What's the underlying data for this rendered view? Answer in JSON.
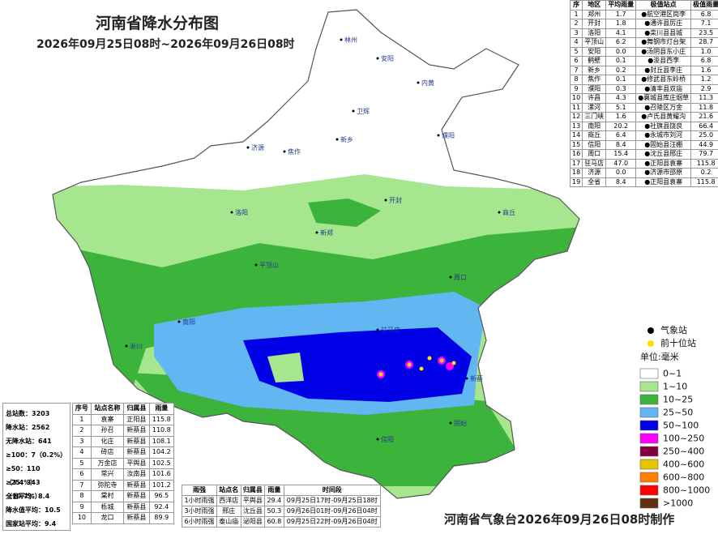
{
  "header": {
    "title": "河南省降水分布图",
    "subtitle": "2026年09月25日08时~2026年09月26日08时"
  },
  "city_table": {
    "columns": [
      "序",
      "地区",
      "平均雨量",
      "极值站点",
      "极值雨量"
    ],
    "rows": [
      [
        "1",
        "郑州",
        "1.7",
        "●航空港区岗李",
        "6.8"
      ],
      [
        "2",
        "开封",
        "1.8",
        "●通许县厉庄",
        "7.1"
      ],
      [
        "3",
        "洛阳",
        "4.1",
        "●栾川县县城",
        "23.5"
      ],
      [
        "4",
        "平顶山",
        "6.2",
        "●舞钢市灯台架",
        "28.7"
      ],
      [
        "5",
        "安阳",
        "0.0",
        "●汤阴县东小庄",
        "1.0"
      ],
      [
        "6",
        "鹤壁",
        "0.1",
        "●浚县西李",
        "6.8"
      ],
      [
        "7",
        "新乡",
        "0.2",
        "●封丘县李庄",
        "1.6"
      ],
      [
        "8",
        "焦作",
        "0.1",
        "●修武县东岭桥",
        "1.2"
      ],
      [
        "9",
        "濮阳",
        "0.3",
        "●清丰县双庙",
        "2.9"
      ],
      [
        "10",
        "许昌",
        "4.3",
        "●襄城县库庄烟草",
        "11.3"
      ],
      [
        "11",
        "漯河",
        "5.1",
        "●召陵区万金",
        "11.8"
      ],
      [
        "12",
        "三门峡",
        "1.6",
        "●卢氏县黄耀沟",
        "21.6"
      ],
      [
        "13",
        "南阳",
        "20.2",
        "●社旗县饶良",
        "66.4"
      ],
      [
        "14",
        "商丘",
        "6.4",
        "●永城市刘河",
        "25.0"
      ],
      [
        "15",
        "信阳",
        "8.4",
        "●固始县汪棚",
        "44.9"
      ],
      [
        "16",
        "周口",
        "15.4",
        "●沈丘县邢庄",
        "79.7"
      ],
      [
        "17",
        "驻马店",
        "47.0",
        "●正阳县袁寨",
        "115.8"
      ],
      [
        "18",
        "济源",
        "0.0",
        "●济源市邵原",
        "0.2"
      ],
      [
        "19",
        "全省",
        "8.4",
        "●正阳县袁寨",
        "115.8"
      ]
    ]
  },
  "statistics": [
    "总站数：3203",
    "降水站：2562",
    "无降水站：641",
    "≥100：7（0.2%）",
    "≥50：110（3.4%）",
    "≥25：343（10.7%）",
    "全省平均：8.4",
    "降水值平均：10.5",
    "国家站平均：9.4"
  ],
  "top10_table": {
    "columns": [
      "序号",
      "站点名称",
      "归属县",
      "雨量"
    ],
    "rows": [
      [
        "1",
        "袁寨",
        "正阳县",
        "115.8"
      ],
      [
        "2",
        "孙召",
        "新蔡县",
        "110.8"
      ],
      [
        "3",
        "化庄",
        "新蔡县",
        "108.1"
      ],
      [
        "4",
        "砖店",
        "新蔡县",
        "104.2"
      ],
      [
        "5",
        "万金店",
        "平舆县",
        "102.5"
      ],
      [
        "6",
        "常兴",
        "汝南县",
        "101.6"
      ],
      [
        "7",
        "弥陀寺",
        "新蔡县",
        "101.2"
      ],
      [
        "8",
        "棠村",
        "新蔡县",
        "96.5"
      ],
      [
        "9",
        "栎城",
        "新蔡县",
        "92.4"
      ],
      [
        "10",
        "龙口",
        "新蔡县",
        "89.9"
      ]
    ]
  },
  "intensity_table": {
    "columns": [
      "雨强",
      "站点名",
      "归属县",
      "雨量",
      "时间段"
    ],
    "rows": [
      [
        "1小时雨强",
        "西洋店",
        "平舆县",
        "29.4",
        "09月25日17时-09月25日18时"
      ],
      [
        "3小时雨强",
        "邢庄",
        "沈丘县",
        "50.3",
        "09月26日01时-09月26日04时"
      ],
      [
        "6小时雨强",
        "泰山庙",
        "泌阳县",
        "60.8",
        "09月25日22时-09月26日04时"
      ]
    ]
  },
  "legend": {
    "stations": [
      {
        "label": "气象站",
        "color": "#000000"
      },
      {
        "label": "前十位站",
        "color": "#ffe000"
      }
    ],
    "unit": "单位:毫米",
    "classes": [
      {
        "label": "0~1",
        "color": "#ffffff"
      },
      {
        "label": "1~10",
        "color": "#a6e68f"
      },
      {
        "label": "10~25",
        "color": "#3cb43c"
      },
      {
        "label": "25~50",
        "color": "#62b6f2"
      },
      {
        "label": "50~100",
        "color": "#0000e6"
      },
      {
        "label": "100~250",
        "color": "#ff00ff"
      },
      {
        "label": "250~400",
        "color": "#820040"
      },
      {
        "label": "400~600",
        "color": "#e8c400"
      },
      {
        "label": "600~800",
        "color": "#ff8000"
      },
      {
        "label": "800~1000",
        "color": "#ff0000"
      },
      {
        "label": ">1000",
        "color": "#603010"
      }
    ]
  },
  "map_labels": [
    "林州",
    "安阳",
    "内黄",
    "濮阳",
    "卫辉",
    "新乡",
    "济源",
    "焦作",
    "洛阳",
    "新郑",
    "开封",
    "商丘",
    "平顶山",
    "周口",
    "南阳",
    "驻马店",
    "新蔡",
    "信阳",
    "固始",
    "淅川"
  ],
  "footer": "河南省气象台2026年09月26日08时制作"
}
